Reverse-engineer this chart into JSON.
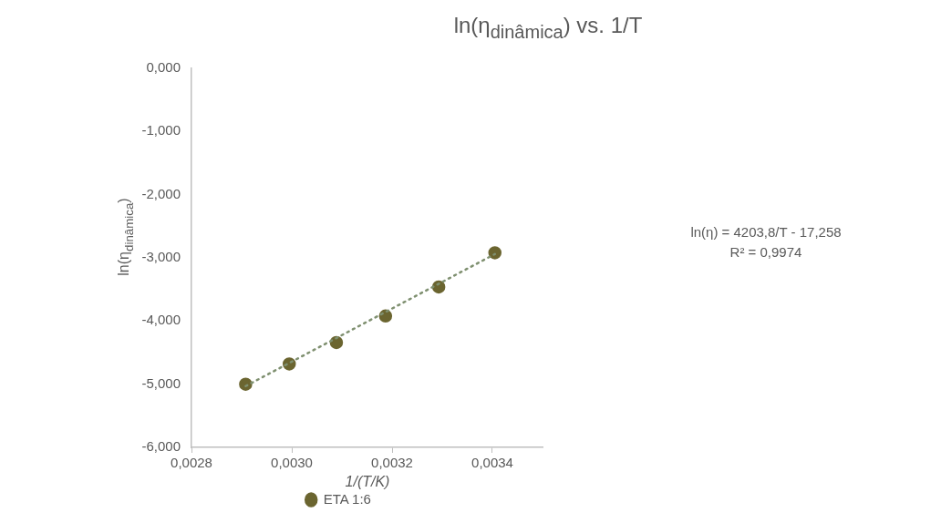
{
  "chart_data": {
    "type": "scatter",
    "title": "ln(η$_{dinâmica}$) vs. 1/T",
    "xlabel": "1/(T/K)",
    "ylabel": "ln(η$_{dinâmica}$)",
    "xlim": [
      0.0028,
      0.0035
    ],
    "xticks": [
      {
        "value": 0.0028,
        "label": "0,0028"
      },
      {
        "value": 0.003,
        "label": "0,0030"
      },
      {
        "value": 0.0032,
        "label": "0,0032"
      },
      {
        "value": 0.0034,
        "label": "0,0034"
      }
    ],
    "ylim": [
      -6,
      0
    ],
    "yticks": [
      {
        "value": 0,
        "label": "0,000"
      },
      {
        "value": -1,
        "label": "-1,000"
      },
      {
        "value": -2,
        "label": "-2,000"
      },
      {
        "value": -3,
        "label": "-3,000"
      },
      {
        "value": -4,
        "label": "-4,000"
      },
      {
        "value": -5,
        "label": "-5,000"
      },
      {
        "value": -6,
        "label": "-6,000"
      }
    ],
    "series": [
      {
        "name": "ETA 1:6",
        "type": "scatter",
        "color": "#6b6530",
        "marker": "circle",
        "x": [
          0.002908,
          0.002995,
          0.003089,
          0.003187,
          0.003293,
          0.003405
        ],
        "values": [
          -5.0,
          -4.68,
          -4.34,
          -3.92,
          -3.46,
          -2.92
        ]
      },
      {
        "type": "line",
        "color": "#7f9070",
        "line_style": "dotted",
        "marker": "none",
        "x": [
          0.002908,
          0.003405
        ],
        "values": [
          -5.03,
          -2.94
        ]
      }
    ],
    "annotations": [
      "ln(η) = 4203,8/T - 17,258",
      "R² = 0,9974"
    ],
    "legend": "bottom",
    "grid": false
  }
}
